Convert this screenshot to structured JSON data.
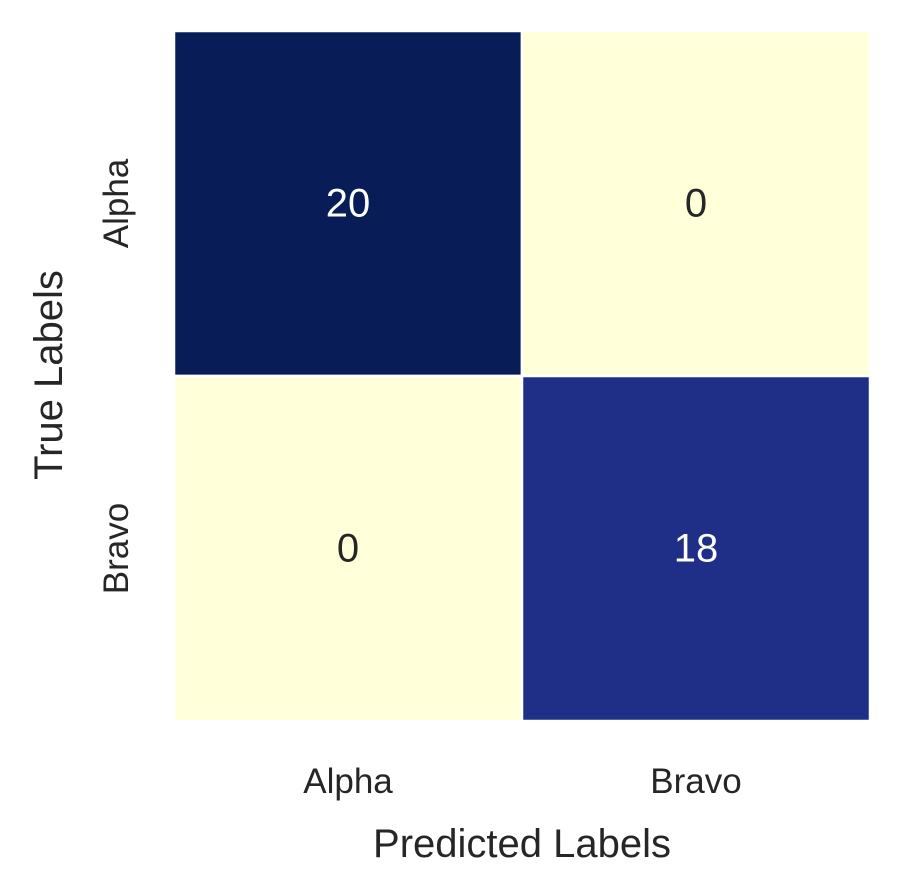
{
  "chart_data": {
    "type": "heatmap",
    "title": "",
    "xlabel": "Predicted Labels",
    "ylabel": "True Labels",
    "x_categories": [
      "Alpha",
      "Bravo"
    ],
    "y_categories": [
      "Alpha",
      "Bravo"
    ],
    "values": [
      [
        20,
        0
      ],
      [
        0,
        18
      ]
    ],
    "value_labels": [
      [
        "20",
        "0"
      ],
      [
        "0",
        "18"
      ]
    ],
    "colorscale": "YlGnBu",
    "color_range": [
      0,
      20
    ],
    "colorbar": false,
    "colors": {
      "low": "#ffffd9",
      "high": "#081d58",
      "text_light": "#ffffff",
      "text_dark": "#262626",
      "cell_border": "#ffffff"
    }
  }
}
